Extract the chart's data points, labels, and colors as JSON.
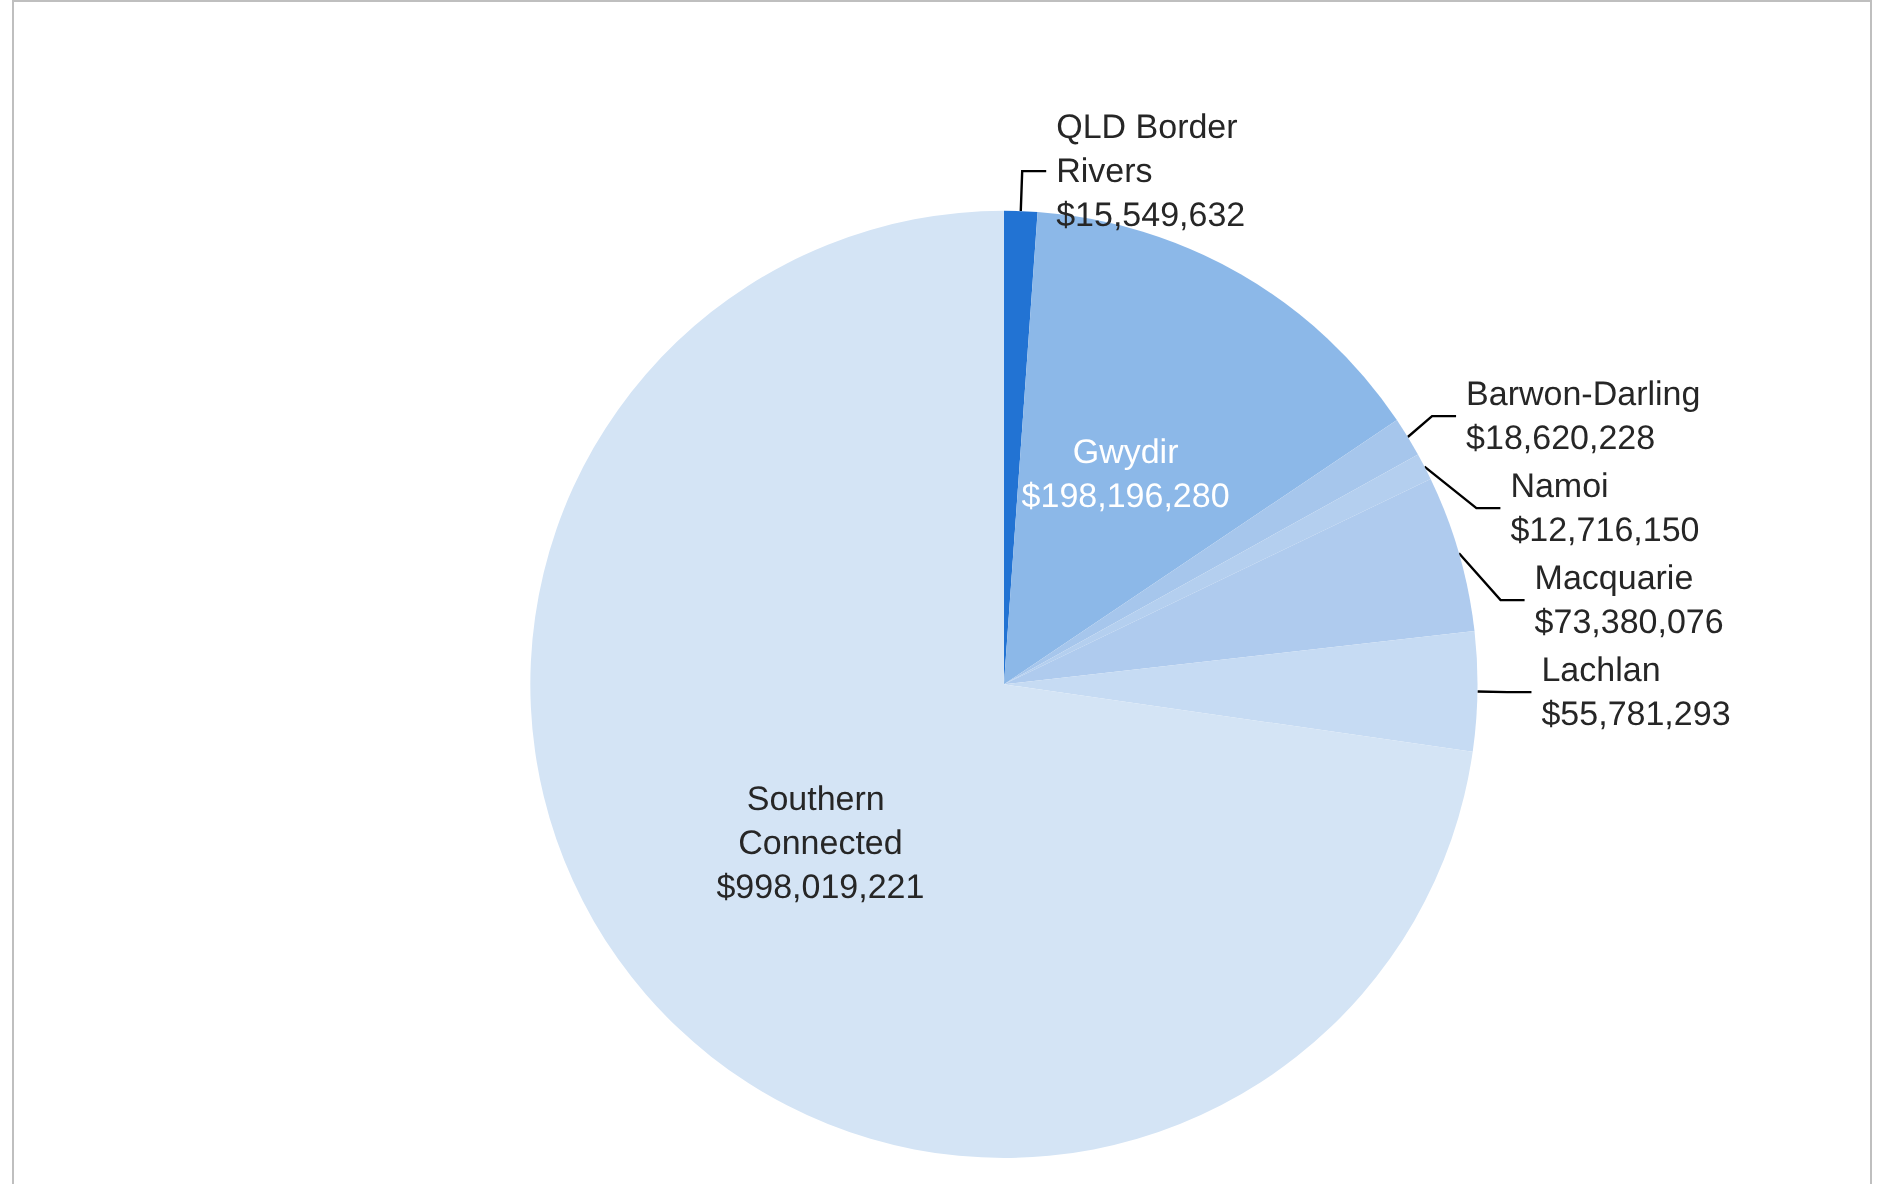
{
  "chart_data": {
    "type": "pie",
    "categories": [
      "QLD Border Rivers",
      "Gwydir",
      "Barwon-Darling",
      "Namoi",
      "Macquarie",
      "Lachlan",
      "Southern Connected"
    ],
    "values": [
      15549632,
      198196280,
      18620228,
      12716150,
      73380076,
      55781293,
      998019221
    ],
    "value_labels": [
      "$15,549,632",
      "$198,196,280",
      "$18,620,228",
      "$12,716,150",
      "$73,380,076",
      "$55,781,293",
      "$998,019,221"
    ],
    "colors": [
      "#2273d3",
      "#8cb8e8",
      "#a6c6ec",
      "#b4cfef",
      "#afcbee",
      "#c6dbf3",
      "#d4e4f5"
    ],
    "legend": false
  }
}
